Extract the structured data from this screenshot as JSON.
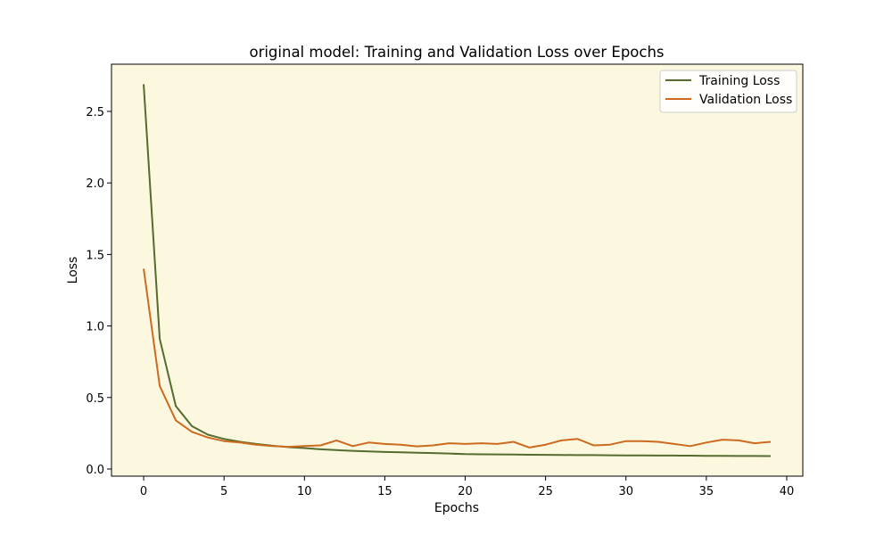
{
  "chart_data": {
    "type": "line",
    "title": "original model: Training and Validation Loss over Epochs",
    "xlabel": "Epochs",
    "ylabel": "Loss",
    "xlim": [
      -2,
      41
    ],
    "ylim": [
      -0.05,
      2.83
    ],
    "xticks": [
      0,
      5,
      10,
      15,
      20,
      25,
      30,
      35,
      40
    ],
    "xtick_labels": [
      "0",
      "5",
      "10",
      "15",
      "20",
      "25",
      "30",
      "35",
      "40"
    ],
    "yticks": [
      0.0,
      0.5,
      1.0,
      1.5,
      2.0,
      2.5
    ],
    "ytick_labels": [
      "0.0",
      "0.5",
      "1.0",
      "1.5",
      "2.0",
      "2.5"
    ],
    "grid": false,
    "legend_position": "top-right",
    "plot_background": "#fcf8e0",
    "x": [
      0,
      1,
      2,
      3,
      4,
      5,
      6,
      7,
      8,
      9,
      10,
      11,
      12,
      13,
      14,
      15,
      16,
      17,
      18,
      19,
      20,
      21,
      22,
      23,
      24,
      25,
      26,
      27,
      28,
      29,
      30,
      31,
      32,
      33,
      34,
      35,
      36,
      37,
      38,
      39
    ],
    "series": [
      {
        "name": "Training Loss",
        "color": "#556b2f",
        "values": [
          2.69,
          0.91,
          0.44,
          0.3,
          0.24,
          0.21,
          0.19,
          0.175,
          0.163,
          0.153,
          0.146,
          0.138,
          0.132,
          0.127,
          0.123,
          0.119,
          0.117,
          0.114,
          0.111,
          0.108,
          0.104,
          0.103,
          0.102,
          0.101,
          0.1,
          0.099,
          0.098,
          0.097,
          0.097,
          0.096,
          0.095,
          0.095,
          0.094,
          0.094,
          0.093,
          0.092,
          0.092,
          0.091,
          0.091,
          0.09
        ]
      },
      {
        "name": "Validation Loss",
        "color": "#cd6a1f",
        "values": [
          1.4,
          0.58,
          0.34,
          0.26,
          0.22,
          0.195,
          0.185,
          0.17,
          0.16,
          0.155,
          0.16,
          0.165,
          0.2,
          0.16,
          0.185,
          0.175,
          0.17,
          0.158,
          0.165,
          0.18,
          0.175,
          0.18,
          0.175,
          0.19,
          0.15,
          0.17,
          0.2,
          0.21,
          0.165,
          0.17,
          0.195,
          0.195,
          0.19,
          0.175,
          0.16,
          0.185,
          0.205,
          0.2,
          0.18,
          0.19
        ]
      }
    ]
  }
}
